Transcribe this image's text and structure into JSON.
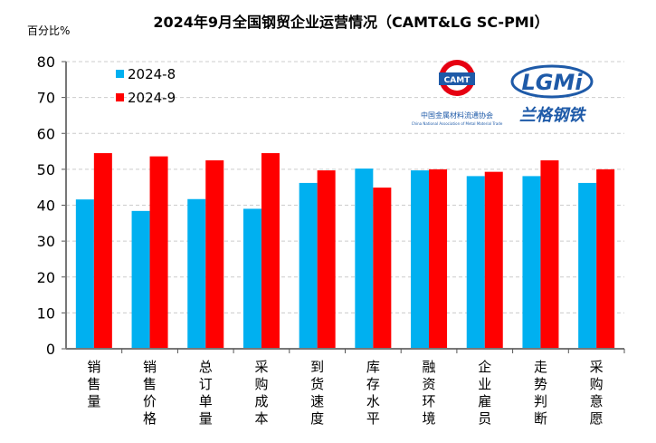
{
  "chart_data": {
    "type": "bar",
    "title": "2024年9月全国钢贸企业运营情况（CAMT&LG SC-PMI）",
    "ylabel": "百分比%",
    "ylim": [
      0,
      80
    ],
    "yticks": [
      0,
      10,
      20,
      30,
      40,
      50,
      60,
      70,
      80
    ],
    "grid": true,
    "legend_placement": "top-left",
    "categories": [
      "销售量",
      "销售价格",
      "总订单量",
      "采购成本",
      "到货速度",
      "库存水平",
      "融资环境",
      "企业雇员",
      "走势判断",
      "采购意愿"
    ],
    "series": [
      {
        "name": "2024-8",
        "color": "#00B0F0",
        "values": [
          41.6,
          38.4,
          41.7,
          39.0,
          46.2,
          50.2,
          49.7,
          48.1,
          48.1,
          46.2
        ]
      },
      {
        "name": "2024-9",
        "color": "#FF0000",
        "values": [
          54.5,
          53.6,
          52.5,
          54.5,
          49.7,
          44.9,
          50.0,
          49.3,
          52.5,
          50.0
        ]
      }
    ]
  },
  "logos": {
    "camt": "CAMT",
    "camt_org": "中国金属材料流通协会",
    "camt_en": "China National Association of Metal Material Trade",
    "lgmi": "LGMi",
    "lgmi_cn": "兰格钢铁"
  }
}
